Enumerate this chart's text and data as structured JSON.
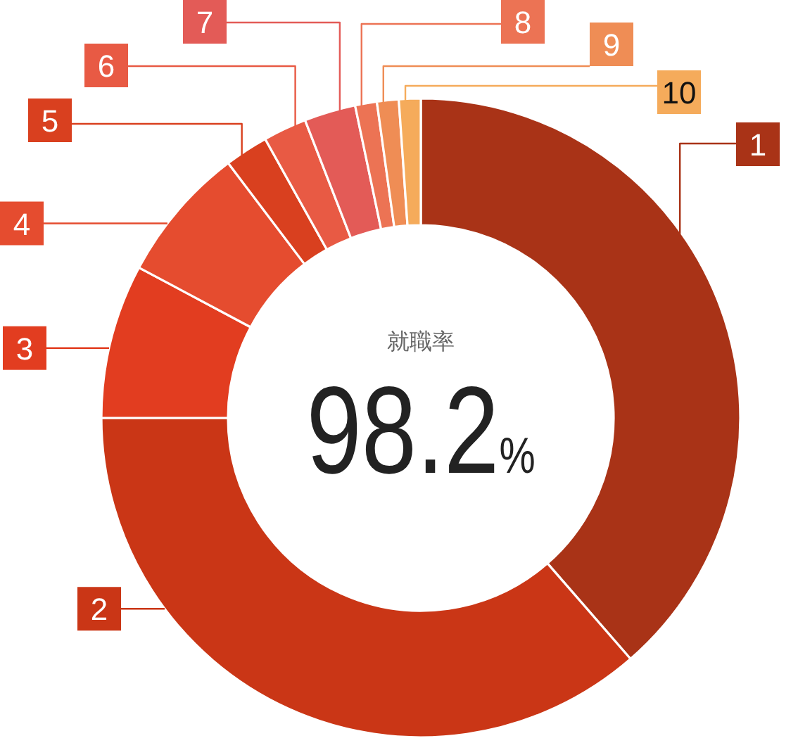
{
  "chart_data": {
    "type": "donut",
    "title": "就職率",
    "annotations": [
      "98.2%"
    ],
    "categories": [
      "1",
      "2",
      "3",
      "4",
      "5",
      "6",
      "7",
      "8",
      "9",
      "10"
    ],
    "values": [
      38.6,
      36.4,
      7.8,
      6.9,
      2.2,
      2.2,
      2.6,
      1.1,
      1.1,
      1.1
    ],
    "colors": [
      "#a93317",
      "#ca3616",
      "#e23d20",
      "#e54c2f",
      "#d9401f",
      "#e85a44",
      "#e35b57",
      "#ec7354",
      "#ef8d55",
      "#f5ab5b"
    ]
  }
}
